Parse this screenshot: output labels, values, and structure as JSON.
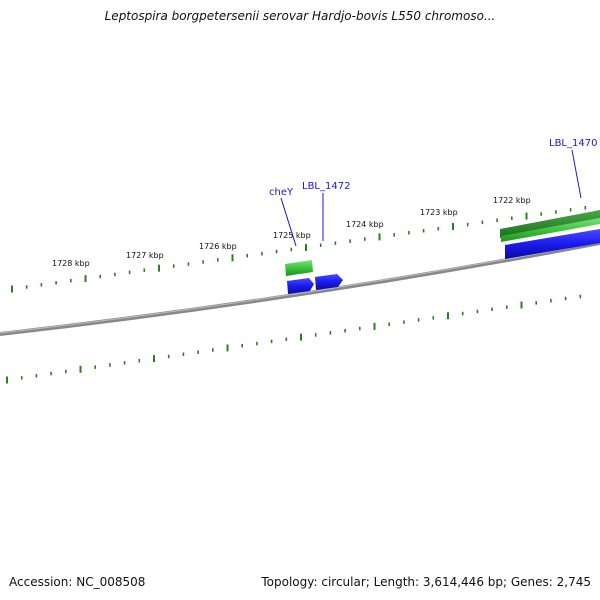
{
  "title": "Leptospira borgpetersenii serovar Hardjo-bovis L550 chromoso...",
  "tick_labels": [
    "1728 kbp",
    "1727 kbp",
    "1726 kbp",
    "1725 kbp",
    "1724 kbp",
    "1723 kbp",
    "1722 kbp"
  ],
  "gene_labels": {
    "chey": "cheY",
    "lbl1472": "LBL_1472",
    "lbl1470": "LBL_1470"
  },
  "footer": {
    "accession": "Accession: NC_008508",
    "summary": "Topology: circular; Length: 3,614,446 bp; Genes: 2,745"
  },
  "colors": {
    "backbone": "#7a7a7a",
    "ticks": "#2e7d1e",
    "gene_green": "#3cc43c",
    "gene_dark_green": "#2a8a2a",
    "gene_blue": "#1a1aee",
    "label_blue": "#1a1ac8"
  }
}
